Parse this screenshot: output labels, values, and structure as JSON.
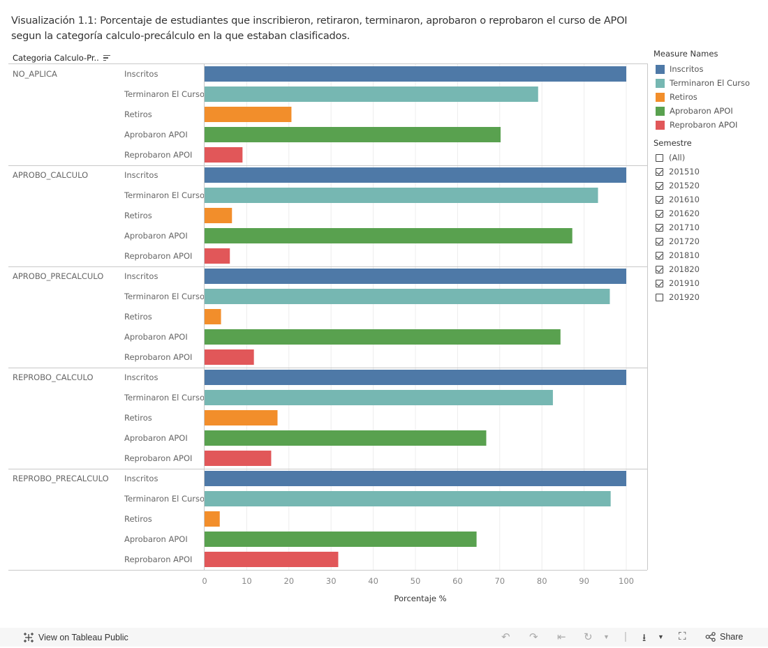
{
  "title": "Visualización 1.1: Porcentaje de estudiantes que inscribieron, retiraron, terminaron, aprobaron o reprobaron el curso de APOI segun la categoría calculo-precálculo en la que estaban clasificados.",
  "column_header": "Categoria Calculo-Pr..",
  "legend": {
    "title": "Measure Names",
    "items": [
      {
        "label": "Inscritos",
        "color": "#4e79a7"
      },
      {
        "label": "Terminaron El Curso",
        "color": "#76b7b2"
      },
      {
        "label": "Retiros",
        "color": "#f28e2b"
      },
      {
        "label": "Aprobaron APOI",
        "color": "#59a14f"
      },
      {
        "label": "Reprobaron APOI",
        "color": "#e15759"
      }
    ]
  },
  "filter": {
    "title": "Semestre",
    "items": [
      {
        "label": "(All)",
        "checked": false
      },
      {
        "label": "201510",
        "checked": true
      },
      {
        "label": "201520",
        "checked": true
      },
      {
        "label": "201610",
        "checked": true
      },
      {
        "label": "201620",
        "checked": true
      },
      {
        "label": "201710",
        "checked": true
      },
      {
        "label": "201720",
        "checked": true
      },
      {
        "label": "201810",
        "checked": true
      },
      {
        "label": "201820",
        "checked": true
      },
      {
        "label": "201910",
        "checked": true
      },
      {
        "label": "201920",
        "checked": false
      }
    ]
  },
  "toolbar": {
    "view_label": "View on Tableau Public",
    "share_label": "Share"
  },
  "chart_data": {
    "type": "bar",
    "orientation": "horizontal",
    "title": "Visualización 1.1: Porcentaje de estudiantes que inscribieron, retiraron, terminaron, aprobaron o reprobaron el curso de APOI segun la categoría calculo-precálculo en la que estaban clasificados.",
    "xlabel": "Porcentaje %",
    "ylabel": "Categoria Calculo-Pr..",
    "xlim": [
      0,
      100
    ],
    "xticks": [
      0,
      10,
      20,
      30,
      40,
      50,
      60,
      70,
      80,
      90,
      100
    ],
    "grid": true,
    "legend": "right",
    "measures": [
      "Inscritos",
      "Terminaron El Curso",
      "Retiros",
      "Aprobaron APOI",
      "Reprobaron APOI"
    ],
    "categories": [
      "NO_APLICA",
      "APROBO_CALCULO",
      "APROBO_PRECALCULO",
      "REPROBO_CALCULO",
      "REPROBO_PRECALCULO"
    ],
    "series": [
      {
        "name": "Inscritos",
        "color": "#4e79a7",
        "values": [
          100,
          100,
          100,
          100,
          100
        ]
      },
      {
        "name": "Terminaron El Curso",
        "color": "#76b7b2",
        "values": [
          79.1,
          93.3,
          96.1,
          82.6,
          96.3
        ]
      },
      {
        "name": "Retiros",
        "color": "#f28e2b",
        "values": [
          20.6,
          6.5,
          3.9,
          17.3,
          3.6
        ]
      },
      {
        "name": "Aprobaron APOI",
        "color": "#59a14f",
        "values": [
          70.2,
          87.2,
          84.4,
          66.8,
          64.5
        ]
      },
      {
        "name": "Reprobaron APOI",
        "color": "#e15759",
        "values": [
          9.0,
          6.0,
          11.7,
          15.8,
          31.7
        ]
      }
    ]
  }
}
